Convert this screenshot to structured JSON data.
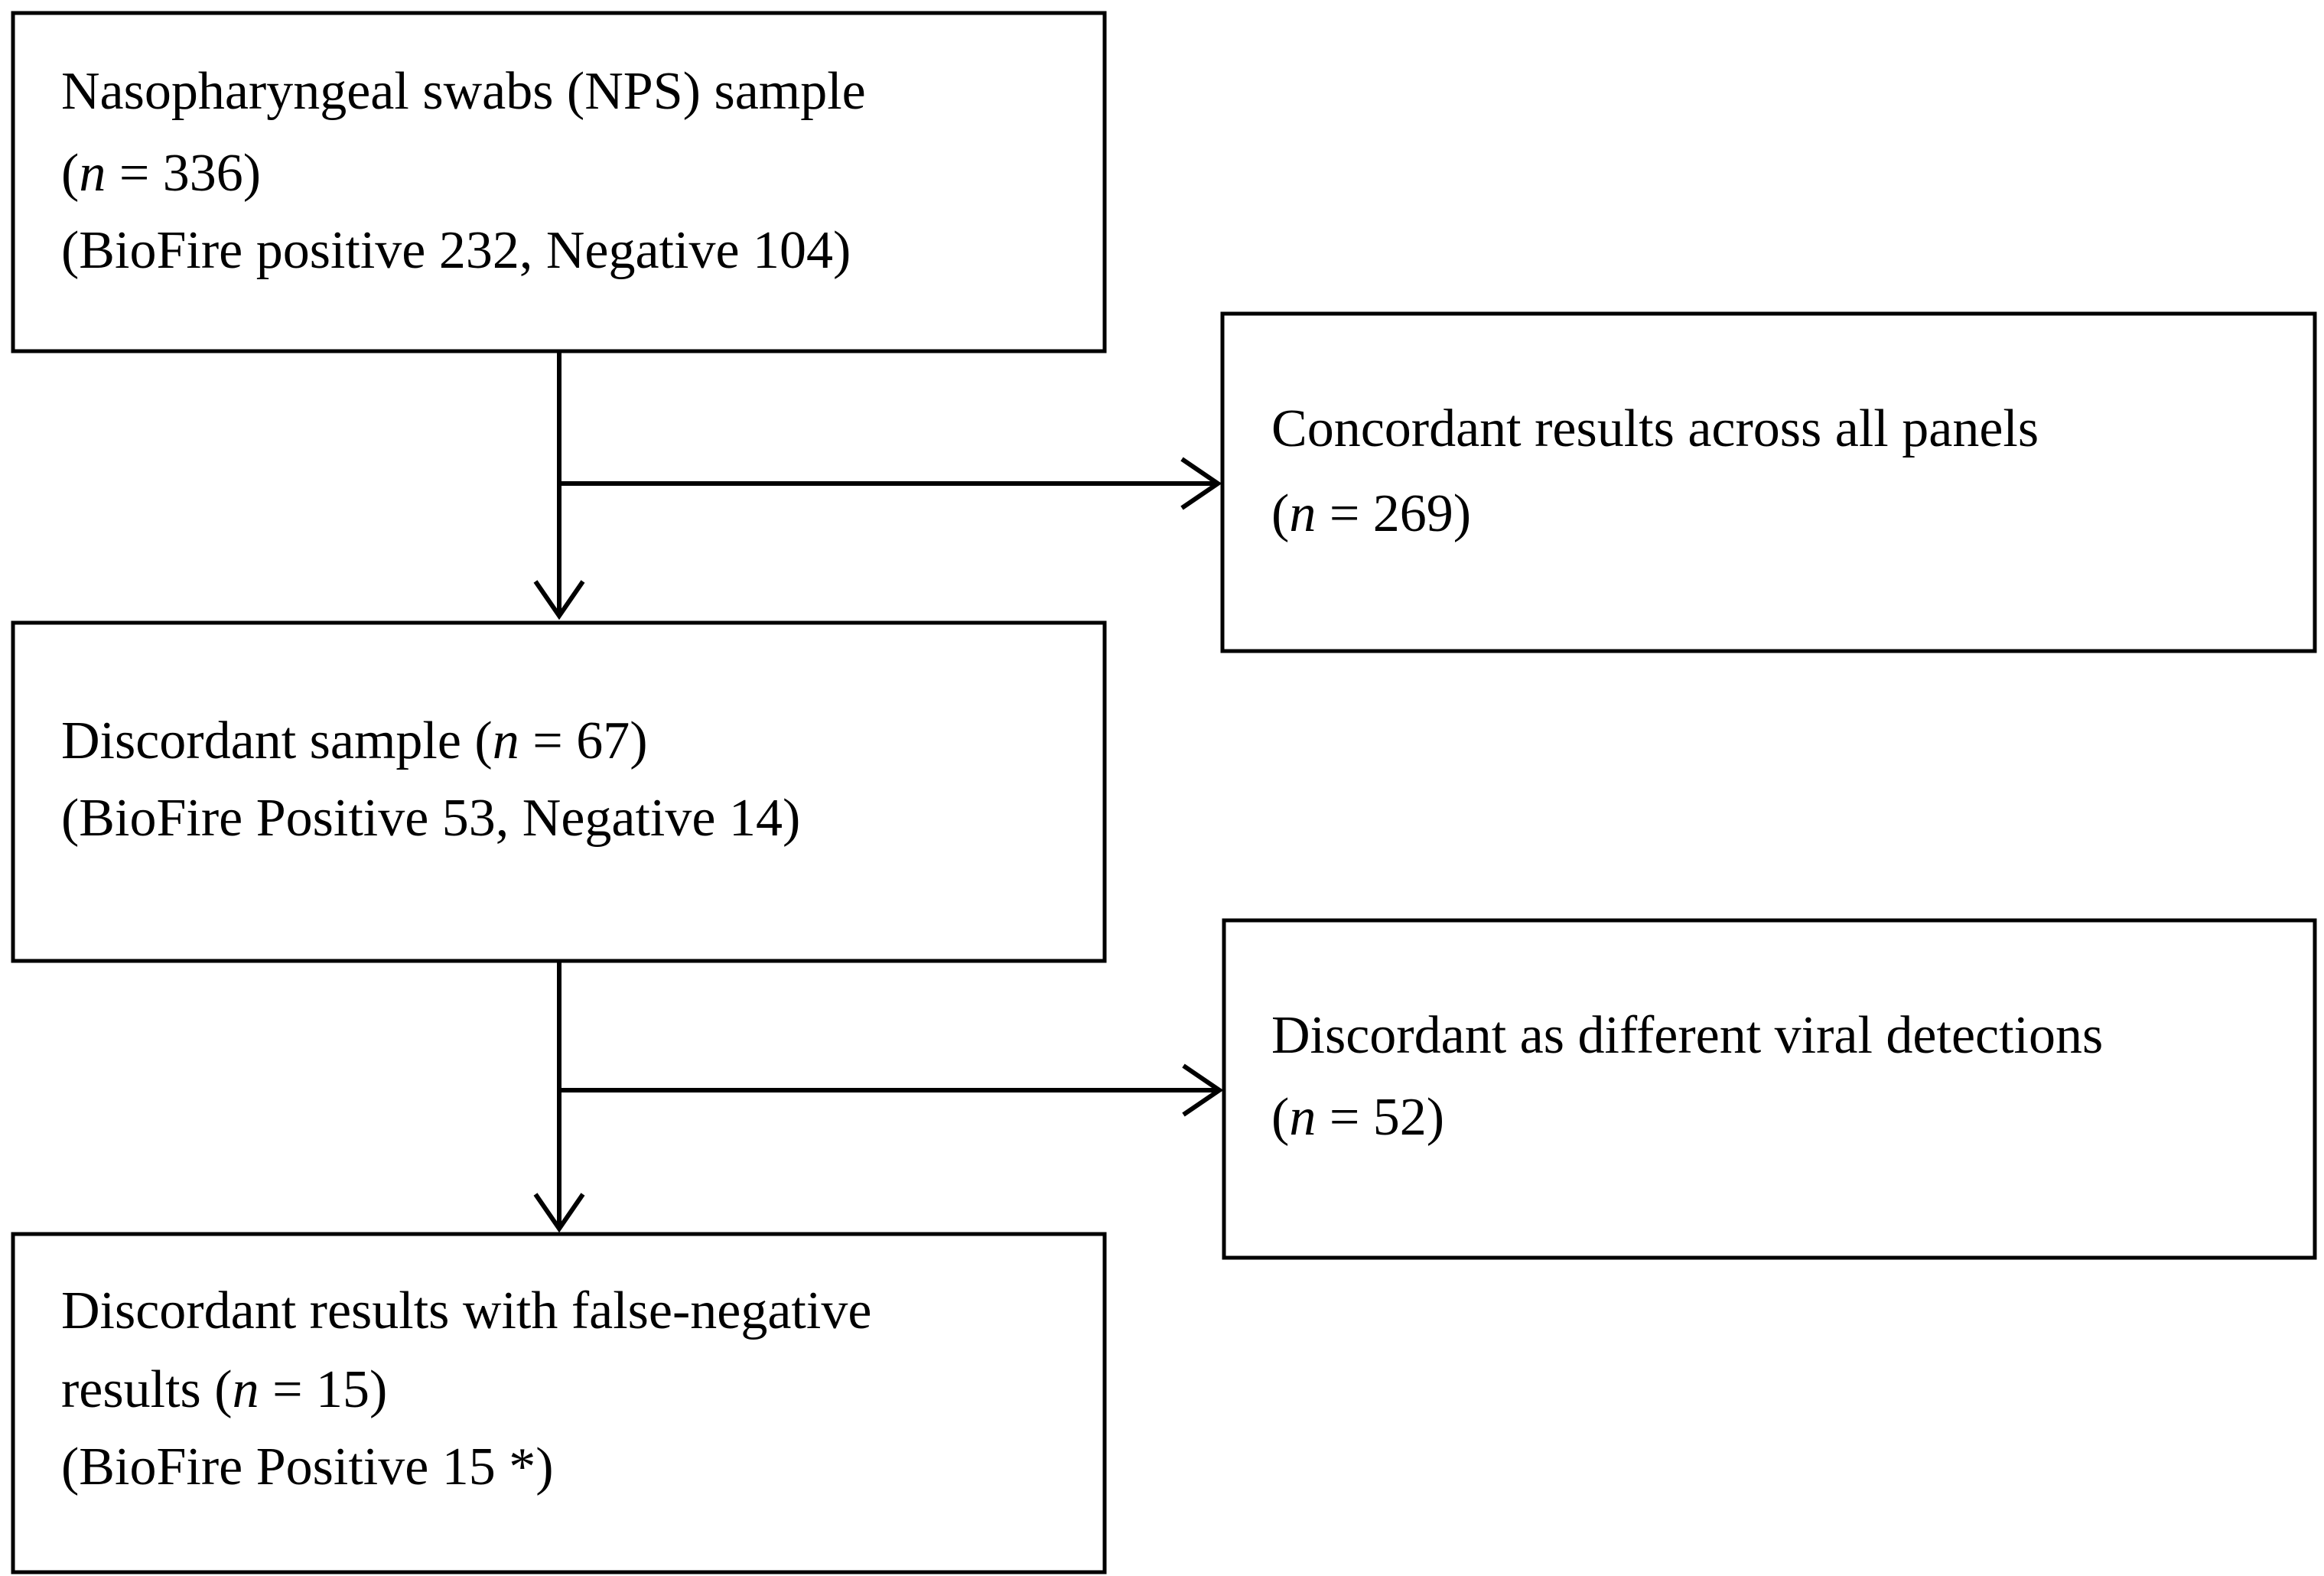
{
  "nodes": [
    {
      "lines": [
        "Nasopharyngeal swabs (NPS) sample",
        {
          "pre": "(",
          "em": "n",
          "post": " = 336)"
        },
        "(BioFire positive 232, Negative 104)"
      ]
    },
    {
      "lines": [
        "Concordant results across all panels",
        {
          "pre": "(",
          "em": "n",
          "post": " = 269)"
        }
      ]
    },
    {
      "lines": [
        {
          "pre": "Discordant sample (",
          "em": "n",
          "post": " = 67)"
        },
        "(BioFire Positive 53, Negative 14)"
      ]
    },
    {
      "lines": [
        "Discordant as different viral detections",
        {
          "pre": "(",
          "em": "n",
          "post": " = 52)"
        }
      ]
    },
    {
      "lines": [
        "Discordant results with false-negative",
        {
          "pre": "results (",
          "em": "n",
          "post": " = 15)"
        },
        "(BioFire Positive 15 *)"
      ]
    }
  ]
}
